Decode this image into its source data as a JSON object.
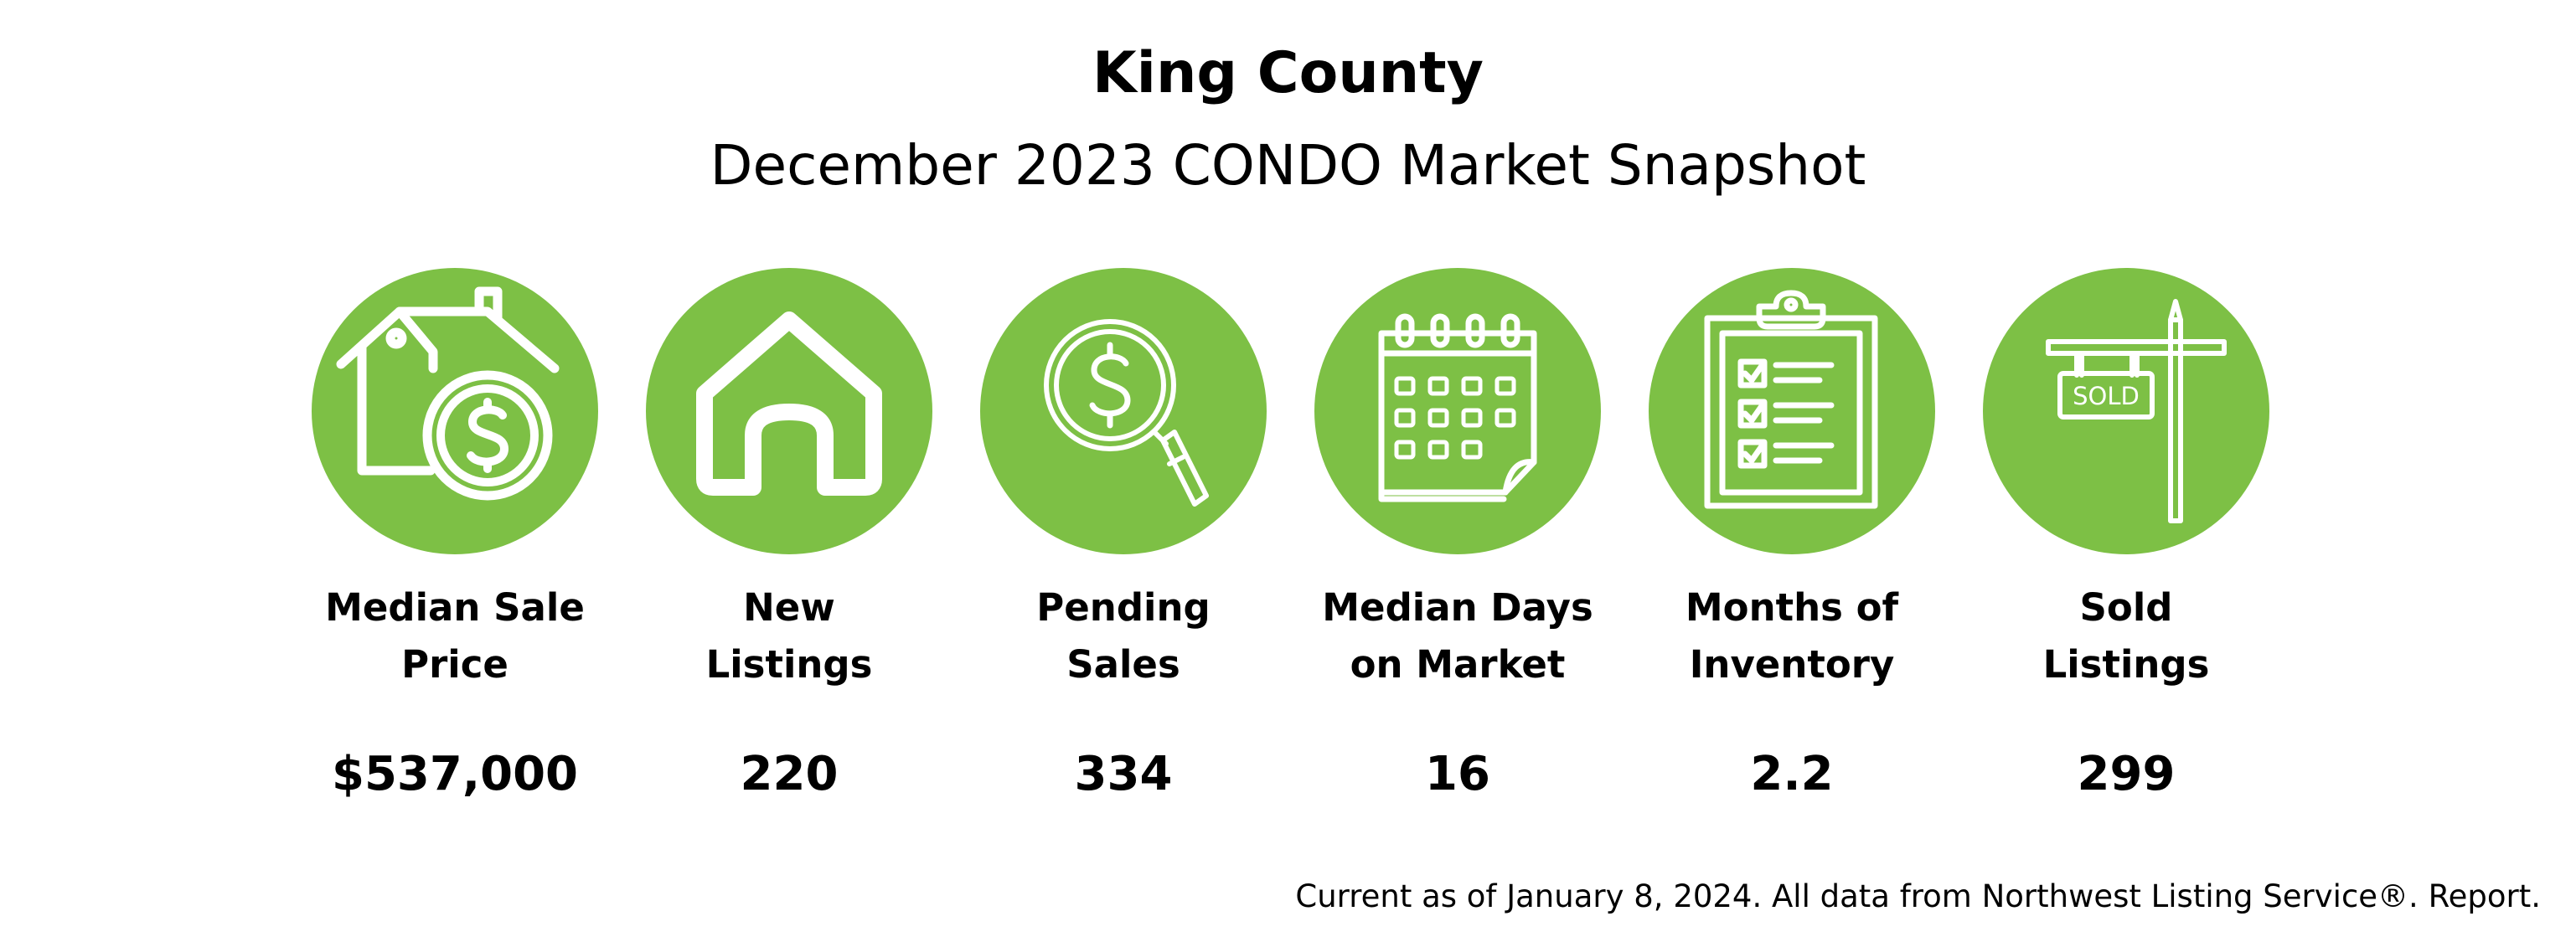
{
  "header": {
    "title": "King County",
    "subtitle": "December 2023 CONDO Market Snapshot"
  },
  "accent_color": "#7dc045",
  "stats": [
    {
      "icon": "house-dollar-icon",
      "label_line1": "Median Sale",
      "label_line2": "Price",
      "value": "$537,000"
    },
    {
      "icon": "house-icon",
      "label_line1": "New",
      "label_line2": "Listings",
      "value": "220"
    },
    {
      "icon": "magnifier-dollar-icon",
      "label_line1": "Pending",
      "label_line2": "Sales",
      "value": "334"
    },
    {
      "icon": "calendar-icon",
      "label_line1": "Median Days",
      "label_line2": "on Market",
      "value": "16"
    },
    {
      "icon": "clipboard-checklist-icon",
      "label_line1": "Months of",
      "label_line2": "Inventory",
      "value": "2.2"
    },
    {
      "icon": "sold-sign-icon",
      "label_line1": "Sold",
      "label_line2": "Listings",
      "value": "299",
      "sign_text": "SOLD"
    }
  ],
  "footer": {
    "note": "Current as of January 8, 2024. All data from Northwest Listing Service®. Report."
  }
}
